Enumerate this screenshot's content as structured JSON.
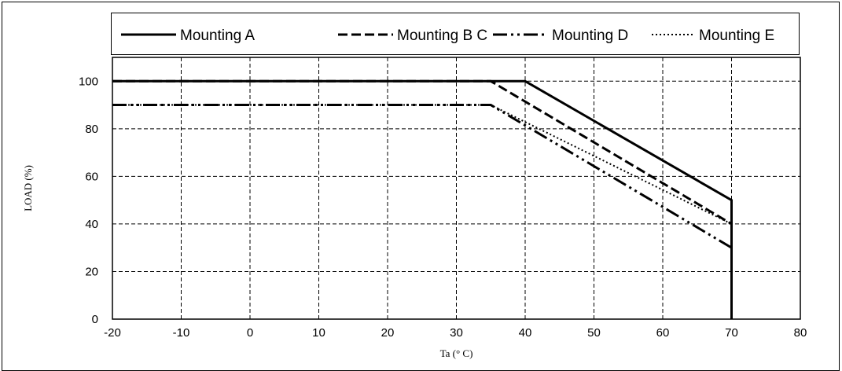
{
  "chart_data": {
    "type": "line",
    "xlabel": "Ta (° C)",
    "ylabel": "LOAD (%)",
    "xlim": [
      -20,
      80
    ],
    "ylim": [
      0,
      110
    ],
    "xticks": [
      "-20",
      "-10",
      "0",
      "10",
      "20",
      "30",
      "40",
      "50",
      "60",
      "70",
      "80"
    ],
    "yticks": [
      "0",
      "20",
      "40",
      "60",
      "80",
      "100"
    ],
    "grid": true,
    "legend_position": "top",
    "series": [
      {
        "name": "Mounting A",
        "style": "solid",
        "x": [
          -20,
          40,
          70,
          70
        ],
        "y": [
          100,
          100,
          50,
          0
        ]
      },
      {
        "name": "Mounting B C",
        "style": "dashed",
        "x": [
          -20,
          35,
          70
        ],
        "y": [
          100,
          100,
          40
        ]
      },
      {
        "name": "Mounting D",
        "style": "dash-dot-dot",
        "x": [
          -20,
          35,
          70
        ],
        "y": [
          90,
          90,
          30
        ]
      },
      {
        "name": "Mounting E",
        "style": "dotted",
        "x": [
          -20,
          35,
          70
        ],
        "y": [
          90,
          90,
          40
        ]
      }
    ]
  }
}
